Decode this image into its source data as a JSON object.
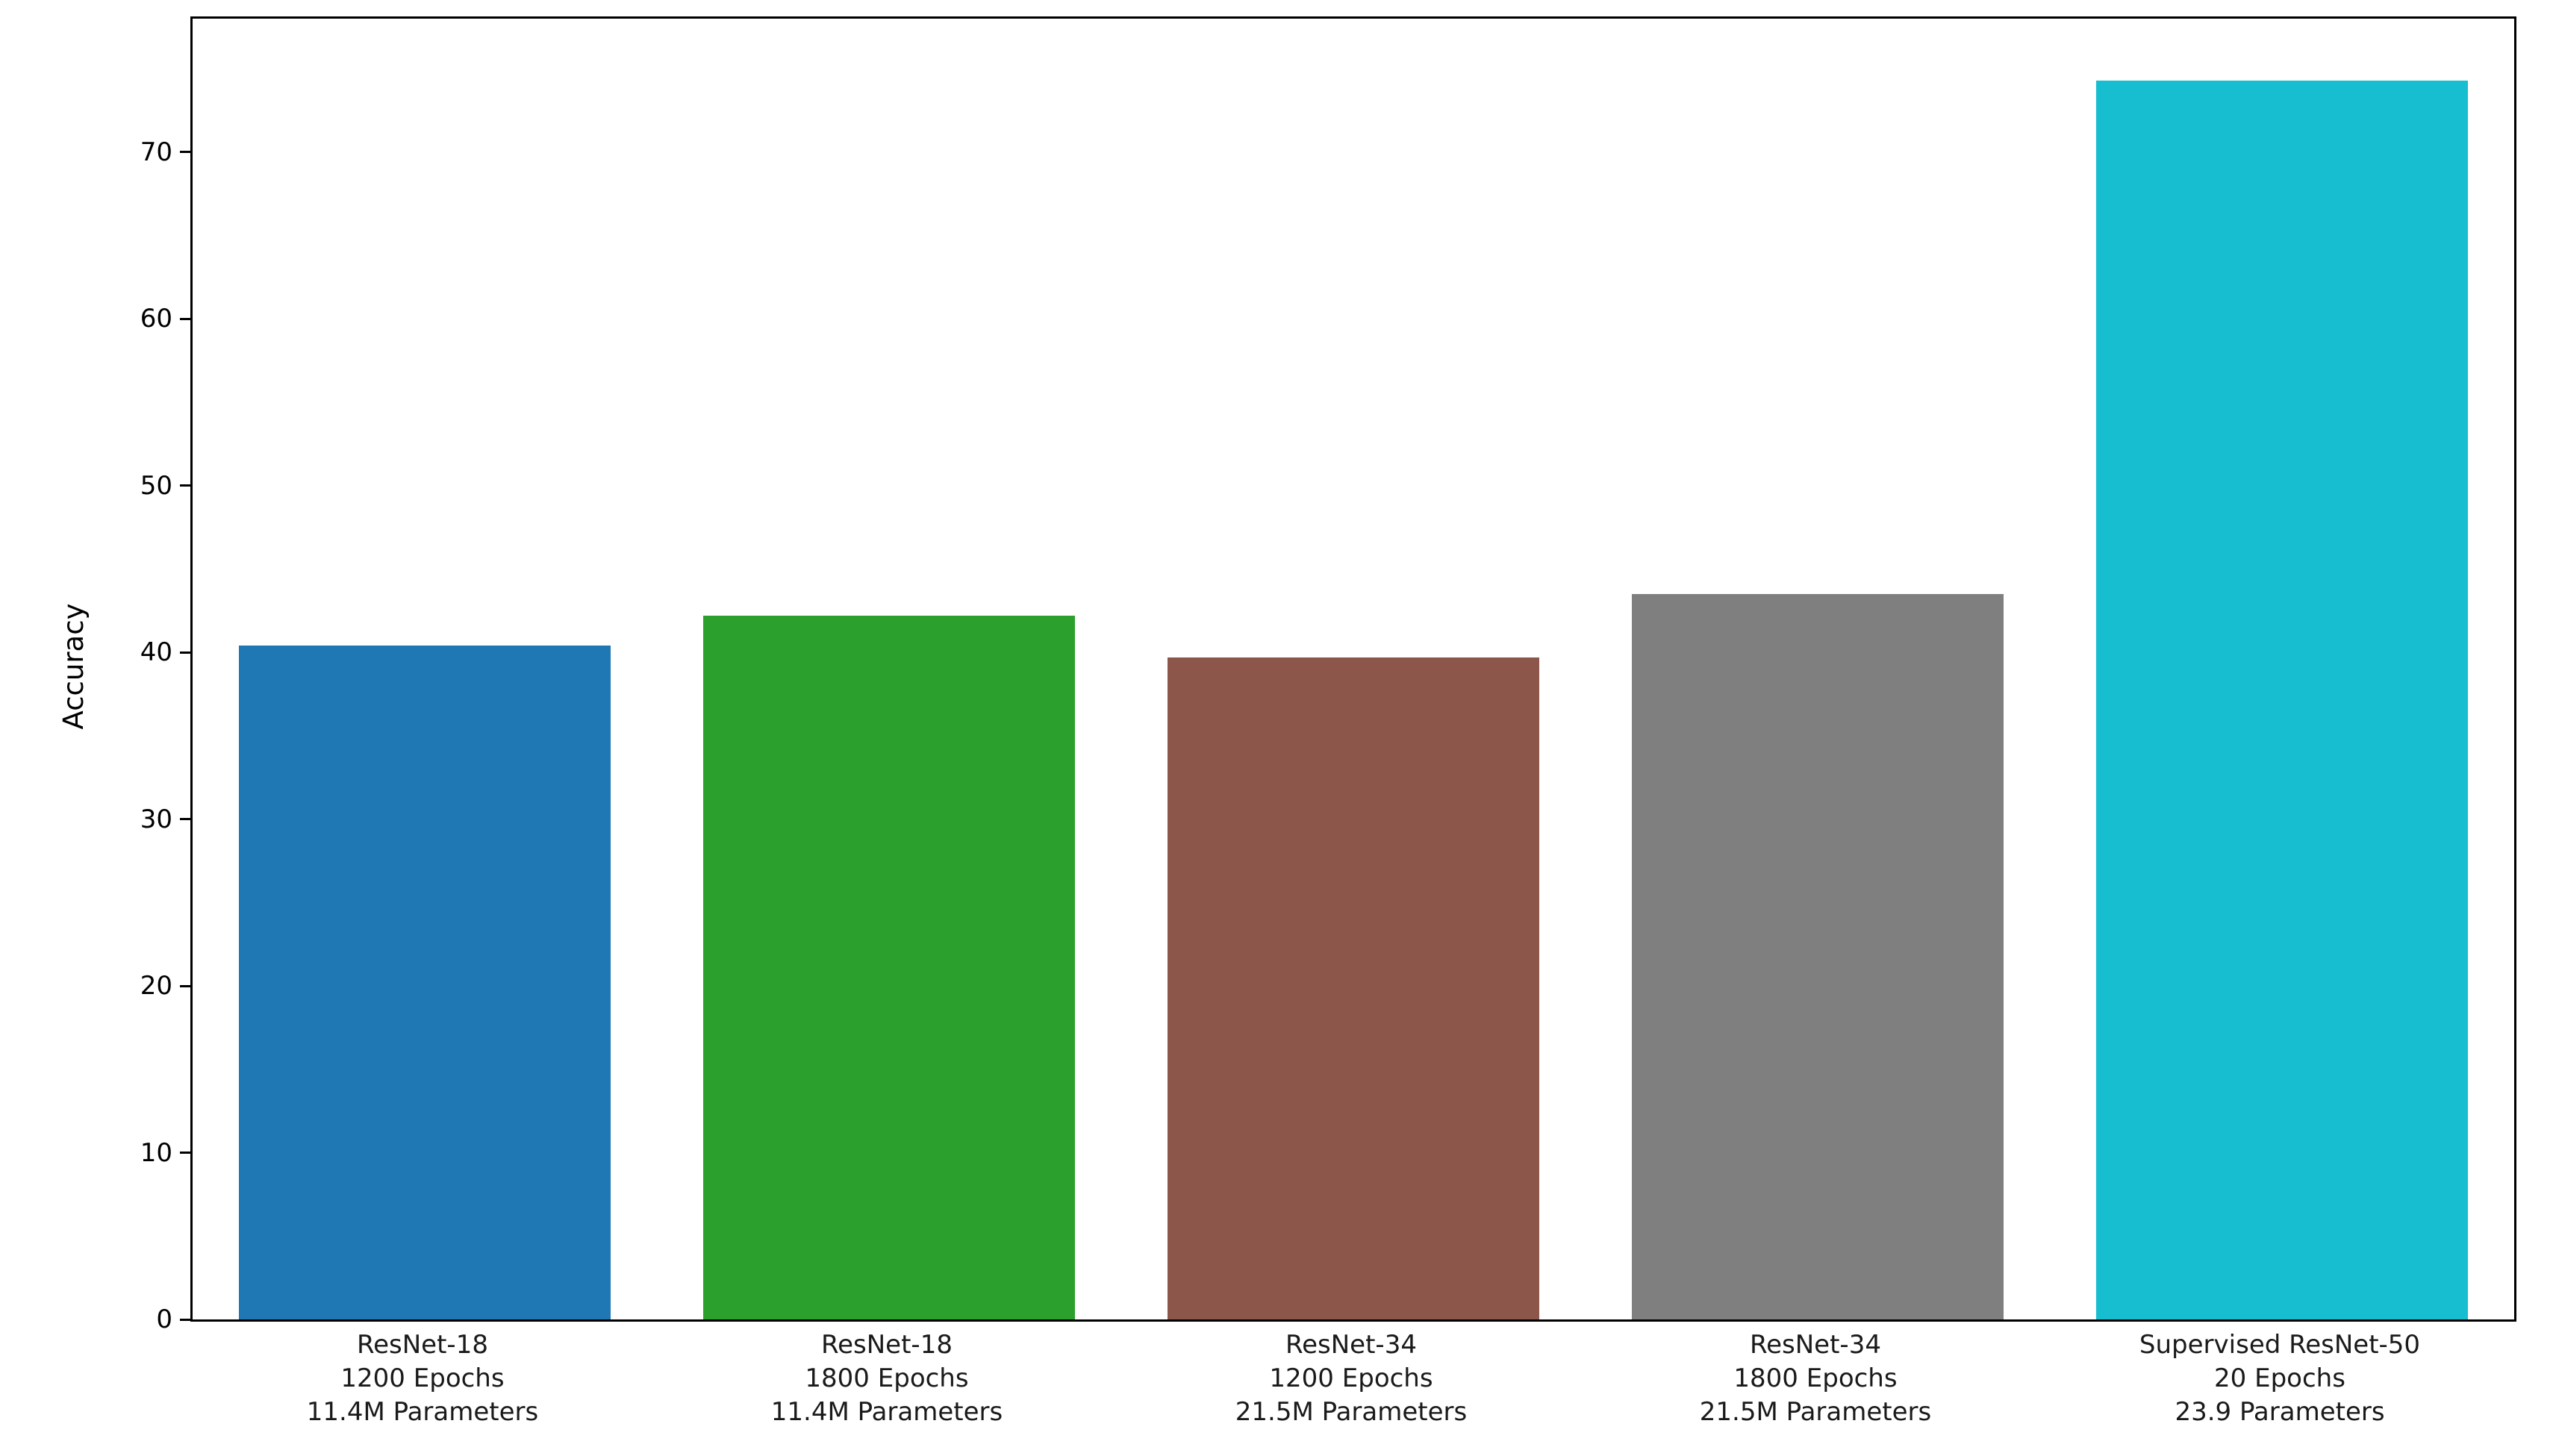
{
  "chart_data": {
    "type": "bar",
    "title": "",
    "xlabel": "",
    "ylabel": "Accuracy",
    "ylim": [
      0,
      78
    ],
    "yticks": [
      0,
      10,
      20,
      30,
      40,
      50,
      60,
      70
    ],
    "grid": false,
    "legend": null,
    "categories": [
      [
        "ResNet-18",
        "1200 Epochs",
        "11.4M Parameters"
      ],
      [
        "ResNet-18",
        "1800 Epochs",
        "11.4M Parameters"
      ],
      [
        "ResNet-34",
        "1200 Epochs",
        "21.5M Parameters"
      ],
      [
        "ResNet-34",
        "1800 Epochs",
        "21.5M Parameters"
      ],
      [
        "Supervised ResNet-50",
        "20 Epochs",
        "23.9 Parameters"
      ]
    ],
    "values": [
      40.4,
      42.2,
      39.7,
      43.5,
      74.3
    ],
    "bar_colors": [
      "#1f77b4",
      "#2ca02c",
      "#8c564b",
      "#7f7f7f",
      "#17becf"
    ],
    "axis_color": "#000000",
    "background_color": "#ffffff",
    "bar_width_fraction": 0.8
  }
}
